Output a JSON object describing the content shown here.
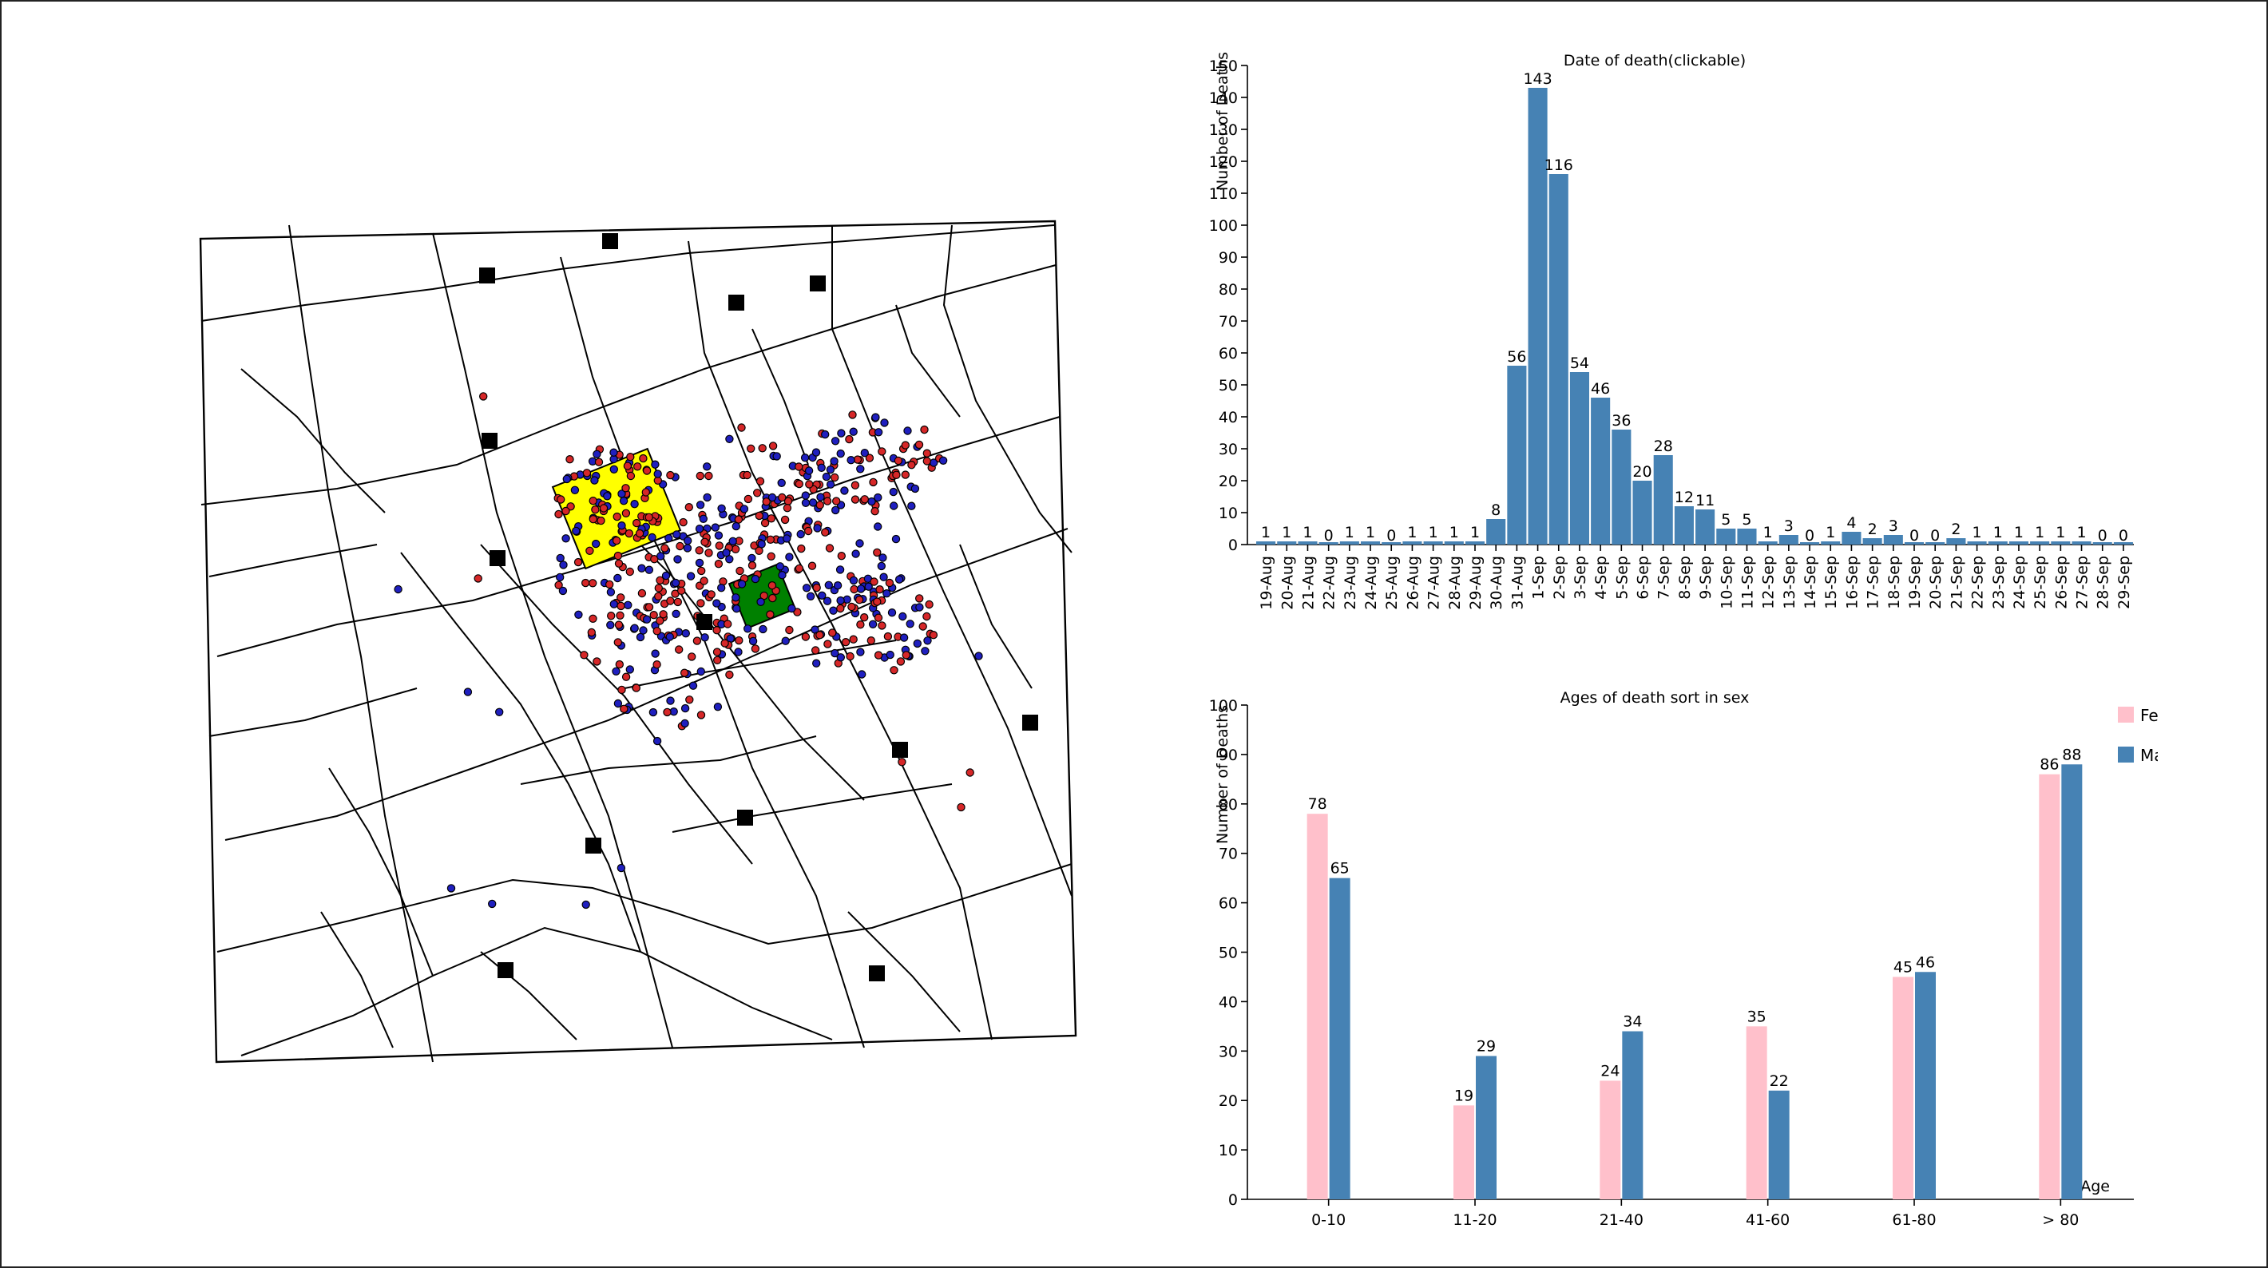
{
  "map": {
    "pump_count": 13,
    "death_points_total": 578,
    "colors": {
      "female": "#d62728",
      "male": "#1f1fbf",
      "pump": "#000000",
      "workhouse": "#ffff00",
      "brewery": "#008000"
    }
  },
  "chart_data": [
    {
      "type": "bar",
      "title": "Date of death(clickable)",
      "ylabel": "Number of Deaths",
      "xlabel": "",
      "ylim": [
        0,
        150
      ],
      "yticks": [
        0,
        10,
        20,
        30,
        40,
        50,
        60,
        70,
        80,
        90,
        100,
        110,
        120,
        130,
        140,
        150
      ],
      "color": "#4682b4",
      "categories": [
        "19-Aug",
        "20-Aug",
        "21-Aug",
        "22-Aug",
        "23-Aug",
        "24-Aug",
        "25-Aug",
        "26-Aug",
        "27-Aug",
        "28-Aug",
        "29-Aug",
        "30-Aug",
        "31-Aug",
        "1-Sep",
        "2-Sep",
        "3-Sep",
        "4-Sep",
        "5-Sep",
        "6-Sep",
        "7-Sep",
        "8-Sep",
        "9-Sep",
        "10-Sep",
        "11-Sep",
        "12-Sep",
        "13-Sep",
        "14-Sep",
        "15-Sep",
        "16-Sep",
        "17-Sep",
        "18-Sep",
        "19-Sep",
        "20-Sep",
        "21-Sep",
        "22-Sep",
        "23-Sep",
        "24-Sep",
        "25-Sep",
        "26-Sep",
        "27-Sep",
        "28-Sep",
        "29-Sep"
      ],
      "values": [
        1,
        1,
        1,
        0,
        1,
        1,
        0,
        1,
        1,
        1,
        1,
        8,
        56,
        143,
        116,
        54,
        46,
        36,
        20,
        28,
        12,
        11,
        5,
        5,
        1,
        3,
        0,
        1,
        4,
        2,
        3,
        0,
        0,
        2,
        1,
        1,
        1,
        1,
        1,
        1,
        0,
        0
      ]
    },
    {
      "type": "bar",
      "title": "Ages of death sort in sex",
      "ylabel": "Number of Deaths",
      "xlabel": "Age",
      "ylim": [
        0,
        100
      ],
      "yticks": [
        0,
        10,
        20,
        30,
        40,
        50,
        60,
        70,
        80,
        90,
        100
      ],
      "legend_position": "top-right",
      "categories": [
        "0-10",
        "11-20",
        "21-40",
        "41-60",
        "61-80",
        "> 80"
      ],
      "series": [
        {
          "name": "Female",
          "color": "#ffc0cb",
          "values": [
            78,
            19,
            24,
            35,
            45,
            86
          ]
        },
        {
          "name": "Male",
          "color": "#4682b4",
          "values": [
            65,
            29,
            34,
            22,
            46,
            88
          ]
        }
      ]
    }
  ]
}
